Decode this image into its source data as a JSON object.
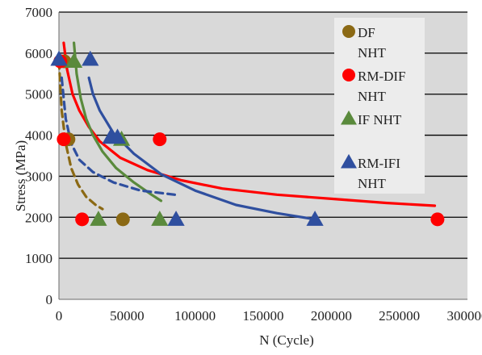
{
  "chart_data": {
    "type": "scatter",
    "title": "",
    "xlabel": "N (Cycle)",
    "ylabel": "Stress (MPa)",
    "xlim": [
      0,
      300000
    ],
    "ylim": [
      0,
      7000
    ],
    "x_ticks": [
      0,
      50000,
      100000,
      150000,
      200000,
      250000,
      300000
    ],
    "y_ticks": [
      0,
      1000,
      2000,
      3000,
      4000,
      5000,
      6000,
      7000
    ],
    "x_tick_labels": [
      "0",
      "50000",
      "100000",
      "150000",
      "200000",
      "250000",
      "300000"
    ],
    "y_tick_labels": [
      "0",
      "1000",
      "2000",
      "3000",
      "4000",
      "5000",
      "6000",
      "7000"
    ],
    "grid": "horizontal",
    "plot_background": "#d9d9d9",
    "legend_position": "top-right",
    "series": [
      {
        "name": "DF NHT",
        "legend_lines": [
          "DF",
          "NHT"
        ],
        "marker": "circle",
        "color": "#8b6914",
        "points": [
          [
            4000,
            5800
          ],
          [
            7000,
            3900
          ],
          [
            47000,
            1950
          ]
        ],
        "trend": {
          "style": "dashed",
          "x": [
            0,
            2000,
            5000,
            9000,
            14000,
            20000,
            27000,
            32000
          ],
          "y": [
            5800,
            4600,
            3800,
            3200,
            2800,
            2500,
            2300,
            2200
          ]
        }
      },
      {
        "name": "RM-DIF NHT",
        "legend_lines": [
          "RM-DIF",
          "NHT"
        ],
        "marker": "circle",
        "color": "#ff0000",
        "points": [
          [
            1000,
            5800
          ],
          [
            3500,
            3900
          ],
          [
            17000,
            1950
          ],
          [
            74000,
            3900
          ],
          [
            278000,
            1950
          ]
        ],
        "trend": {
          "style": "solid",
          "x": [
            3500,
            6000,
            10000,
            15000,
            22000,
            30000,
            45000,
            65000,
            90000,
            120000,
            160000,
            200000,
            240000,
            276000
          ],
          "y": [
            6250,
            5600,
            5000,
            4600,
            4200,
            3850,
            3450,
            3150,
            2900,
            2700,
            2550,
            2450,
            2350,
            2280
          ]
        }
      },
      {
        "name": "IF NHT",
        "legend_lines": [
          "IF NHT"
        ],
        "marker": "triangle",
        "color": "#5a8a3c",
        "points": [
          [
            11000,
            5800
          ],
          [
            29000,
            1950
          ],
          [
            46000,
            3900
          ],
          [
            74000,
            1950
          ]
        ],
        "trend": {
          "style": "solid",
          "x": [
            11000,
            13000,
            16000,
            20000,
            25000,
            32000,
            42000,
            55000,
            68000,
            75000
          ],
          "y": [
            6250,
            5500,
            4900,
            4400,
            4000,
            3600,
            3200,
            2850,
            2550,
            2400
          ]
        }
      },
      {
        "name": "RM-IFI NHT",
        "legend_lines": [
          "RM-IFI",
          "NHT"
        ],
        "marker": "triangle",
        "color": "#2f4f9f",
        "points": [
          [
            0,
            5850
          ],
          [
            23000,
            5850
          ],
          [
            38000,
            3950
          ],
          [
            43000,
            3950
          ],
          [
            86000,
            1950
          ],
          [
            188000,
            1950
          ]
        ],
        "trend": {
          "style": "solid",
          "x": [
            22000,
            25000,
            30000,
            40000,
            55000,
            75000,
            100000,
            130000,
            160000,
            188000
          ],
          "y": [
            5400,
            5000,
            4600,
            4050,
            3550,
            3050,
            2650,
            2300,
            2100,
            1950
          ]
        }
      },
      {
        "name": "RM-IFI NHT fit",
        "legend_lines": [],
        "marker": "none",
        "color": "#2f4f9f",
        "trend": {
          "style": "dashed",
          "x": [
            2000,
            5000,
            9000,
            15000,
            25000,
            40000,
            60000,
            85000
          ],
          "y": [
            5400,
            4400,
            3800,
            3400,
            3100,
            2850,
            2650,
            2550
          ]
        }
      }
    ]
  }
}
